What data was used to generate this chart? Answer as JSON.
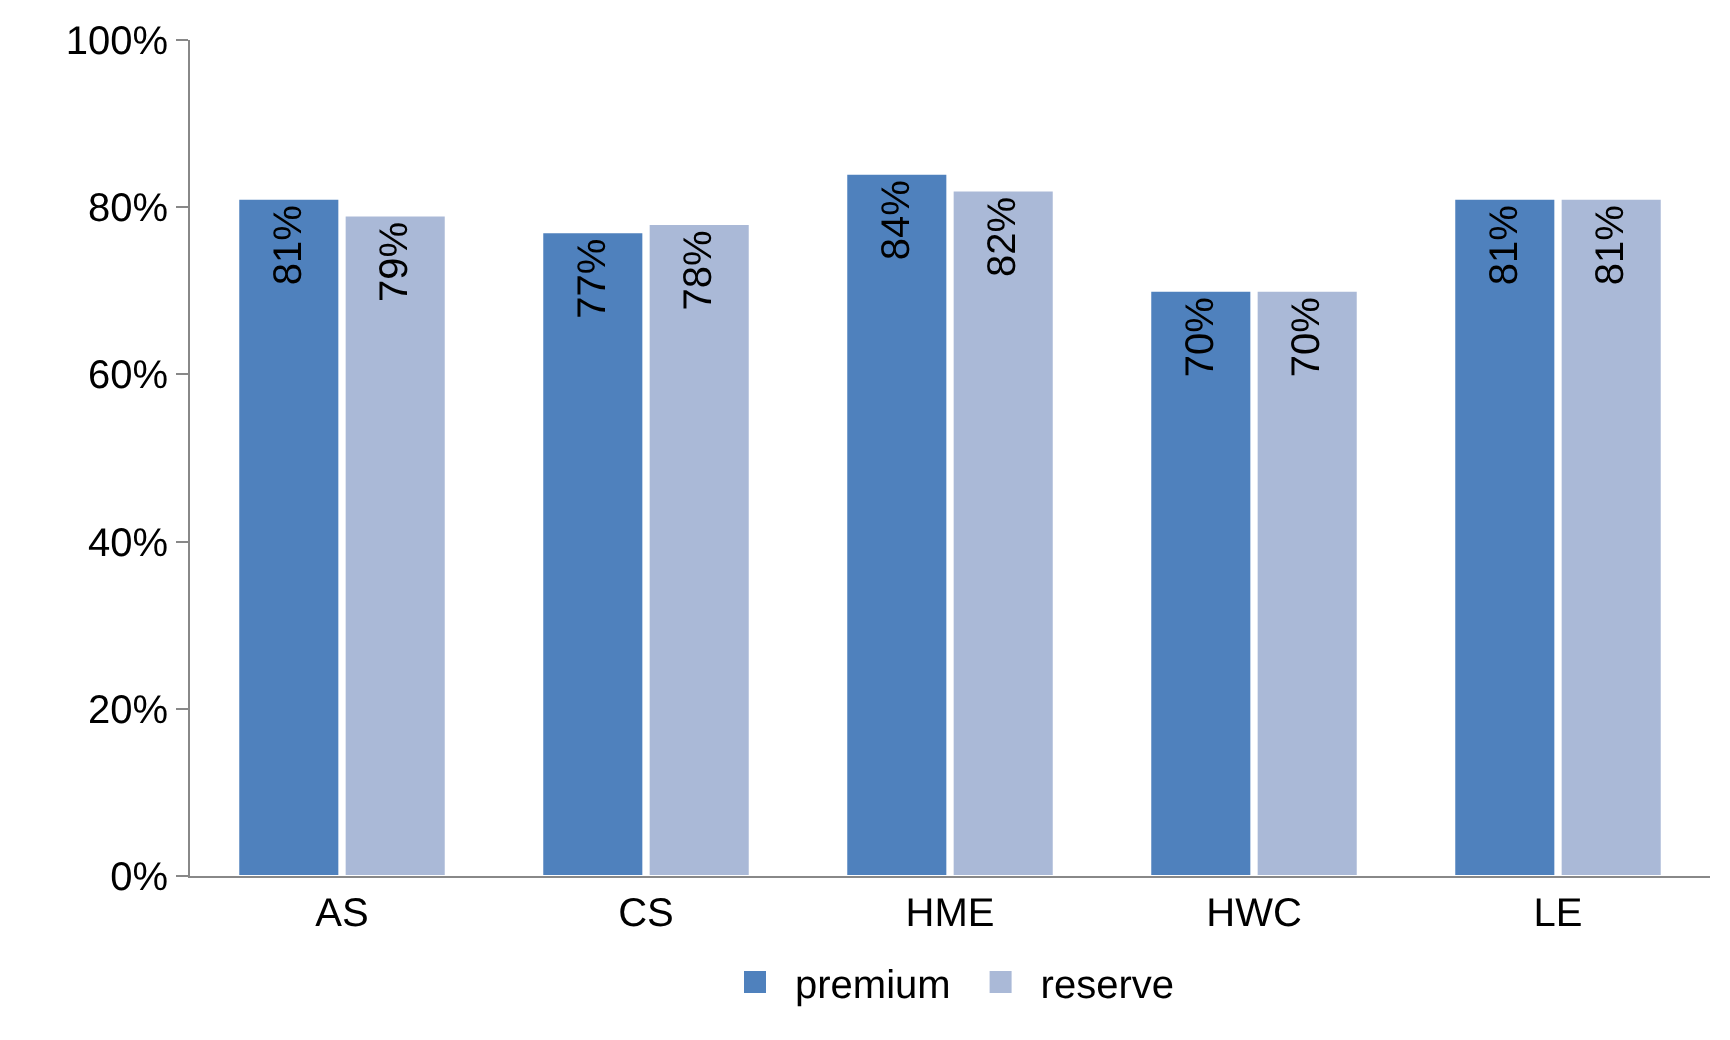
{
  "chart_data": {
    "type": "bar",
    "categories": [
      "AS",
      "CS",
      "HME",
      "HWC",
      "LE"
    ],
    "series": [
      {
        "name": "premium",
        "color": "#4f81bd",
        "values": [
          81,
          77,
          84,
          70,
          81
        ],
        "value_labels": [
          "81%",
          "77%",
          "84%",
          "70%",
          "81%"
        ]
      },
      {
        "name": "reserve",
        "color": "#aab9d7",
        "values": [
          79,
          78,
          82,
          70,
          81
        ],
        "value_labels": [
          "79%",
          "78%",
          "82%",
          "70%",
          "81%"
        ]
      }
    ],
    "ylim": [
      0,
      100
    ],
    "yticks": [
      {
        "value": 0,
        "label": "0%"
      },
      {
        "value": 20,
        "label": "20%"
      },
      {
        "value": 40,
        "label": "40%"
      },
      {
        "value": 60,
        "label": "60%"
      },
      {
        "value": 80,
        "label": "80%"
      },
      {
        "value": 100,
        "label": "100%"
      }
    ],
    "grid": false,
    "legend": "bottom"
  }
}
